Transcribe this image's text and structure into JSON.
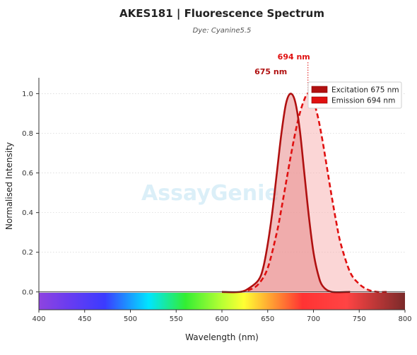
{
  "chart_data": {
    "type": "area",
    "title": "AKES181  |  Fluorescence Spectrum",
    "subtitle": "Dye: Cyanine5.5",
    "xlabel": "Wavelength (nm)",
    "ylabel": "Normalised Intensity",
    "xlim": [
      400,
      800
    ],
    "ylim": [
      -0.09,
      1.08
    ],
    "x_ticks": [
      400,
      450,
      500,
      550,
      600,
      650,
      700,
      750,
      800
    ],
    "y_ticks": [
      0.0,
      0.2,
      0.4,
      0.6,
      0.8,
      1.0
    ],
    "x_tick_labels": [
      "400",
      "450",
      "500",
      "550",
      "600",
      "650",
      "700",
      "750",
      "800"
    ],
    "y_tick_labels": [
      "0.0",
      "0.2",
      "0.4",
      "0.6",
      "0.8",
      "1.0"
    ],
    "grid": "horizontal dotted",
    "legend_position": "top-right",
    "series": [
      {
        "name": "Excitation",
        "legend_label": "Excitation  675 nm",
        "peak_nm": 675,
        "peak_label": "675 nm",
        "color": "#b01010",
        "fill": "#e88a8a",
        "line_style": "solid",
        "x": [
          600,
          620,
          630,
          640,
          645,
          650,
          655,
          660,
          665,
          670,
          675,
          680,
          685,
          690,
          695,
          700,
          705,
          710,
          720,
          740
        ],
        "y": [
          0.0,
          0.0,
          0.02,
          0.06,
          0.12,
          0.24,
          0.4,
          0.6,
          0.8,
          0.95,
          1.0,
          0.96,
          0.82,
          0.6,
          0.38,
          0.2,
          0.09,
          0.03,
          0.0,
          0.0
        ]
      },
      {
        "name": "Emission",
        "legend_label": "Emission  694 nm",
        "peak_nm": 694,
        "peak_label": "694 nm",
        "color": "#e01010",
        "fill": "#f7b5b5",
        "line_style": "dashed",
        "x": [
          620,
          630,
          640,
          650,
          660,
          665,
          670,
          675,
          680,
          685,
          690,
          694,
          700,
          705,
          710,
          715,
          720,
          725,
          730,
          740,
          750,
          760,
          770,
          780
        ],
        "y": [
          0.0,
          0.01,
          0.04,
          0.12,
          0.3,
          0.42,
          0.55,
          0.68,
          0.8,
          0.9,
          0.97,
          1.0,
          0.96,
          0.88,
          0.76,
          0.62,
          0.48,
          0.35,
          0.24,
          0.1,
          0.04,
          0.01,
          0.0,
          0.0
        ]
      }
    ],
    "spectrum_bar_colors": {
      "violet": "#8e44e0",
      "blue": "#3b3bff",
      "cyan": "#00e5ff",
      "green": "#33ee33",
      "yellow": "#ffff33",
      "orange": "#ff9933",
      "red": "#ff3333",
      "deep_red": "#7a2a2a"
    }
  },
  "watermark": {
    "text_part1": "Assay",
    "text_part2": "Genie"
  }
}
